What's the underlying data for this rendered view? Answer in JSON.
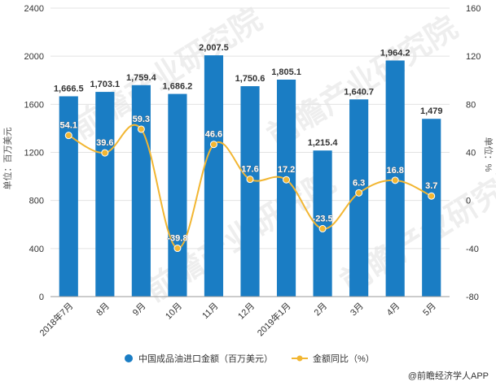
{
  "chart_data": {
    "type": "bar+line",
    "categories": [
      "2018年7月",
      "8月",
      "9月",
      "10月",
      "11月",
      "12月",
      "2019年1月",
      "2月",
      "3月",
      "4月",
      "5月"
    ],
    "series": [
      {
        "name": "中国成品油进口金额（百万美元）",
        "type": "bar",
        "axis": "left",
        "values": [
          1666.5,
          1703.1,
          1759.4,
          1686.2,
          2007.5,
          1750.6,
          1805.1,
          1215.4,
          1640.7,
          1964.2,
          1479
        ],
        "labels": [
          "1,666.5",
          "1,703.1",
          "1,759.4",
          "1,686.2",
          "2,007.5",
          "1,750.6",
          "1,805.1",
          "1,215.4",
          "1,640.7",
          "1,964.2",
          "1,479"
        ]
      },
      {
        "name": "金额同比（%）",
        "type": "line",
        "axis": "right",
        "values": [
          54.1,
          39.6,
          59.3,
          -39.8,
          46.6,
          17.6,
          17.2,
          -23.5,
          6.3,
          16.8,
          3.7
        ],
        "labels": [
          "54.1",
          "39.6",
          "59.3",
          "-39.8",
          "46.6",
          "17.6",
          "17.2",
          "-23.5",
          "6.3",
          "16.8",
          "3.7"
        ]
      }
    ],
    "ylabel_left": "单位：百万美元",
    "ylabel_right": "单位：%",
    "ylim_left": [
      0,
      2400
    ],
    "yticks_left": [
      "0",
      "400",
      "800",
      "1200",
      "1600",
      "2000",
      "2400"
    ],
    "ylim_right": [
      -80,
      160
    ],
    "yticks_right": [
      "-80",
      "-40",
      "0",
      "40",
      "80",
      "120",
      "160"
    ],
    "grid": "horizontal",
    "legend_position": "bottom-center",
    "colors": {
      "bar": "#1a7dc4",
      "line": "#f2b632",
      "grid": "#e3e3e3",
      "text": "#333333"
    }
  },
  "watermark": "前瞻产业研究院",
  "source_credit": "@前瞻经济学人APP"
}
